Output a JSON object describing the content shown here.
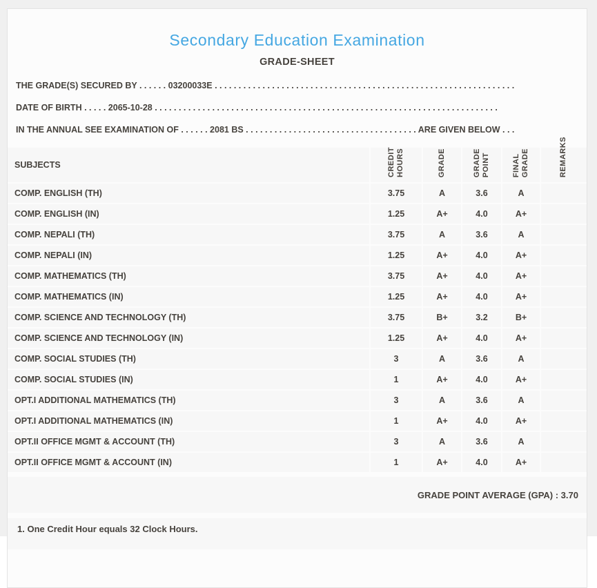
{
  "header": {
    "title": "Secondary Education Examination",
    "subtitle": "GRADE-SHEET"
  },
  "student_info": {
    "lines": [
      {
        "label": "THE GRADE(S) SECURED BY",
        "dots_before": " . . . . . . ",
        "value": "03200033E",
        "dots_after": " . . . . . . . . . . . . . . . . . . . . . . . . . . . . . . . . . . . . . . . . . . . . . . . . . . . . . . . . . . . . . . .",
        "suffix": ""
      },
      {
        "label": "DATE OF BIRTH",
        "dots_before": " . . . . . ",
        "value": "2065-10-28",
        "dots_after": " . . . . . . . . . . . . . . . . . . . . . . . . . . . . . . . . . . . . . . . . . . . . . . . . . . . . . . . . . . . . . . . . . . . . . . . .",
        "suffix": ""
      },
      {
        "label": "IN THE ANNUAL SEE EXAMINATION OF",
        "dots_before": " . . . . . . ",
        "value": "2081 BS",
        "dots_after": " . . . . . . . . . . . . . . . . . . . . . . . . . . . . . . . . . . . . ",
        "suffix": "ARE GIVEN BELOW . . ."
      }
    ]
  },
  "table": {
    "columns": [
      "SUBJECTS",
      "CREDIT\nHOURS",
      "GRADE",
      "GRADE\nPOINT",
      "FINAL\nGRADE",
      "REMARKS"
    ],
    "rows": [
      {
        "subject": "COMP. ENGLISH (TH)",
        "credit_hours": "3.75",
        "grade": "A",
        "grade_point": "3.6",
        "final_grade": "A",
        "remarks": ""
      },
      {
        "subject": "COMP. ENGLISH (IN)",
        "credit_hours": "1.25",
        "grade": "A+",
        "grade_point": "4.0",
        "final_grade": "A+",
        "remarks": ""
      },
      {
        "subject": "COMP. NEPALI (TH)",
        "credit_hours": "3.75",
        "grade": "A",
        "grade_point": "3.6",
        "final_grade": "A",
        "remarks": ""
      },
      {
        "subject": "COMP. NEPALI (IN)",
        "credit_hours": "1.25",
        "grade": "A+",
        "grade_point": "4.0",
        "final_grade": "A+",
        "remarks": ""
      },
      {
        "subject": "COMP. MATHEMATICS (TH)",
        "credit_hours": "3.75",
        "grade": "A+",
        "grade_point": "4.0",
        "final_grade": "A+",
        "remarks": ""
      },
      {
        "subject": "COMP. MATHEMATICS (IN)",
        "credit_hours": "1.25",
        "grade": "A+",
        "grade_point": "4.0",
        "final_grade": "A+",
        "remarks": ""
      },
      {
        "subject": "COMP. SCIENCE AND TECHNOLOGY (TH)",
        "credit_hours": "3.75",
        "grade": "B+",
        "grade_point": "3.2",
        "final_grade": "B+",
        "remarks": ""
      },
      {
        "subject": "COMP. SCIENCE AND TECHNOLOGY (IN)",
        "credit_hours": "1.25",
        "grade": "A+",
        "grade_point": "4.0",
        "final_grade": "A+",
        "remarks": ""
      },
      {
        "subject": "COMP. SOCIAL STUDIES (TH)",
        "credit_hours": "3",
        "grade": "A",
        "grade_point": "3.6",
        "final_grade": "A",
        "remarks": ""
      },
      {
        "subject": "COMP. SOCIAL STUDIES (IN)",
        "credit_hours": "1",
        "grade": "A+",
        "grade_point": "4.0",
        "final_grade": "A+",
        "remarks": ""
      },
      {
        "subject": "OPT.I ADDITIONAL MATHEMATICS (TH)",
        "credit_hours": "3",
        "grade": "A",
        "grade_point": "3.6",
        "final_grade": "A",
        "remarks": ""
      },
      {
        "subject": "OPT.I ADDITIONAL MATHEMATICS (IN)",
        "credit_hours": "1",
        "grade": "A+",
        "grade_point": "4.0",
        "final_grade": "A+",
        "remarks": ""
      },
      {
        "subject": "OPT.II OFFICE MGMT & ACCOUNT (TH)",
        "credit_hours": "3",
        "grade": "A",
        "grade_point": "3.6",
        "final_grade": "A",
        "remarks": ""
      },
      {
        "subject": "OPT.II OFFICE MGMT & ACCOUNT (IN)",
        "credit_hours": "1",
        "grade": "A+",
        "grade_point": "4.0",
        "final_grade": "A+",
        "remarks": ""
      }
    ],
    "gpa_line": "GRADE POINT AVERAGE (GPA) : 3.70"
  },
  "footer": {
    "note": "1. One Credit Hour equals 32 Clock Hours."
  },
  "colors": {
    "accent_blue": "#45a7e2",
    "text": "#46423d",
    "row_bg": "#f7f7f7",
    "card_bg": "#fcfcfc",
    "page_bg": "#f0f0f0",
    "card_border": "#e3e3e3"
  }
}
